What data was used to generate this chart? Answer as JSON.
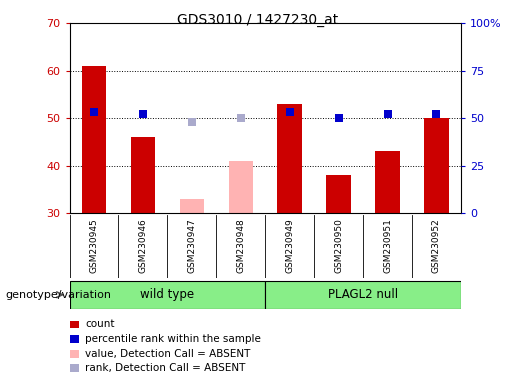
{
  "title": "GDS3010 / 1427230_at",
  "samples": [
    "GSM230945",
    "GSM230946",
    "GSM230947",
    "GSM230948",
    "GSM230949",
    "GSM230950",
    "GSM230951",
    "GSM230952"
  ],
  "count_values": [
    61.0,
    46.0,
    null,
    null,
    53.0,
    38.0,
    43.0,
    50.0
  ],
  "count_absent": [
    null,
    null,
    33.0,
    41.0,
    null,
    null,
    null,
    null
  ],
  "rank_values": [
    53.0,
    52.0,
    null,
    null,
    53.0,
    50.0,
    52.0,
    52.0
  ],
  "rank_absent": [
    null,
    null,
    48.0,
    50.0,
    null,
    null,
    null,
    null
  ],
  "ylim_left": [
    30,
    70
  ],
  "ylim_right": [
    0,
    100
  ],
  "yticks_left": [
    30,
    40,
    50,
    60,
    70
  ],
  "yticks_right": [
    0,
    25,
    50,
    75,
    100
  ],
  "ytick_labels_right": [
    "0",
    "25",
    "50",
    "75",
    "100%"
  ],
  "bar_color_red": "#cc0000",
  "bar_color_pink": "#ffb3b3",
  "dot_color_blue": "#0000cc",
  "dot_color_lightblue": "#aaaacc",
  "group1_label": "wild type",
  "group2_label": "PLAGL2 null",
  "group1_indices": [
    0,
    1,
    2,
    3
  ],
  "group2_indices": [
    4,
    5,
    6,
    7
  ],
  "group_bg_color": "#88ee88",
  "header_bg_color": "#cccccc",
  "plot_bg_color": "#ffffff",
  "outer_bg_color": "#ffffff",
  "legend_items": [
    {
      "color": "#cc0000",
      "label": "count"
    },
    {
      "color": "#0000cc",
      "label": "percentile rank within the sample"
    },
    {
      "color": "#ffb3b3",
      "label": "value, Detection Call = ABSENT"
    },
    {
      "color": "#aaaacc",
      "label": "rank, Detection Call = ABSENT"
    }
  ],
  "bar_width": 0.5,
  "dot_size": 35,
  "genotype_label": "genotype/variation"
}
